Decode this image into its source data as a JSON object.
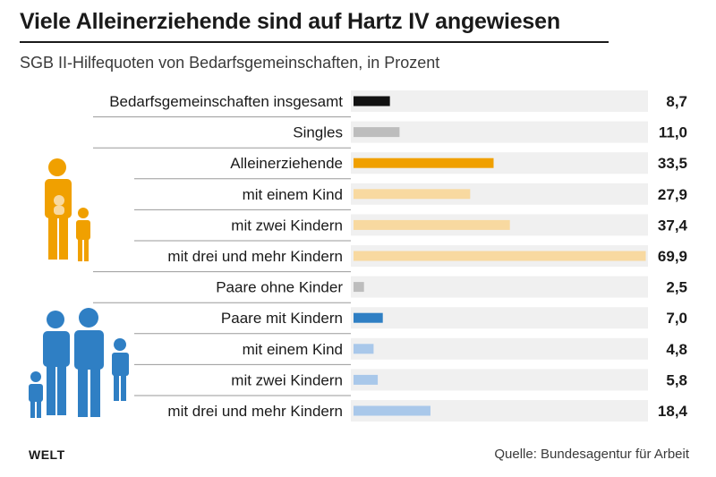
{
  "header": {
    "title": "Viele Alleinerziehende sind auf Hartz IV angewiesen",
    "subtitle": "SGB II-Hilfequoten von Bedarfsgemeinschaften, in Prozent"
  },
  "footer": {
    "logo": "WELT",
    "source": "Quelle: Bundesagentur für Arbeit"
  },
  "icons": [
    "single-parent-family-icon",
    "two-parent-family-icon"
  ],
  "colors": {
    "black": "#111111",
    "grey": "#bdbdbd",
    "orange": "#f0a000",
    "light_orange": "#f8d9a0",
    "blue": "#2f7fc4",
    "light_blue": "#a9c8ea",
    "track": "#f0f0f0"
  },
  "chart_data": {
    "type": "bar",
    "orientation": "horizontal",
    "categories": [
      "Bedarfsgemeinschaften insgesamt",
      "Singles",
      "Alleinerziehende",
      "mit einem Kind",
      "mit zwei Kindern",
      "mit drei und mehr Kindern",
      "Paare ohne Kinder",
      "Paare mit Kindern",
      "mit einem Kind",
      "mit zwei Kindern",
      "mit drei und mehr Kindern"
    ],
    "values": [
      8.7,
      11.0,
      33.5,
      27.9,
      37.4,
      69.9,
      2.5,
      7.0,
      4.8,
      5.8,
      18.4
    ],
    "value_labels": [
      "8,7",
      "11,0",
      "33,5",
      "27,9",
      "37,4",
      "69,9",
      "2,5",
      "7,0",
      "4,8",
      "5,8",
      "18,4"
    ],
    "bar_colors": [
      "#111111",
      "#bdbdbd",
      "#f0a000",
      "#f8d9a0",
      "#f8d9a0",
      "#f8d9a0",
      "#bdbdbd",
      "#2f7fc4",
      "#a9c8ea",
      "#a9c8ea",
      "#a9c8ea"
    ],
    "xlim": [
      0,
      70
    ],
    "grid": false,
    "legend": "none"
  }
}
